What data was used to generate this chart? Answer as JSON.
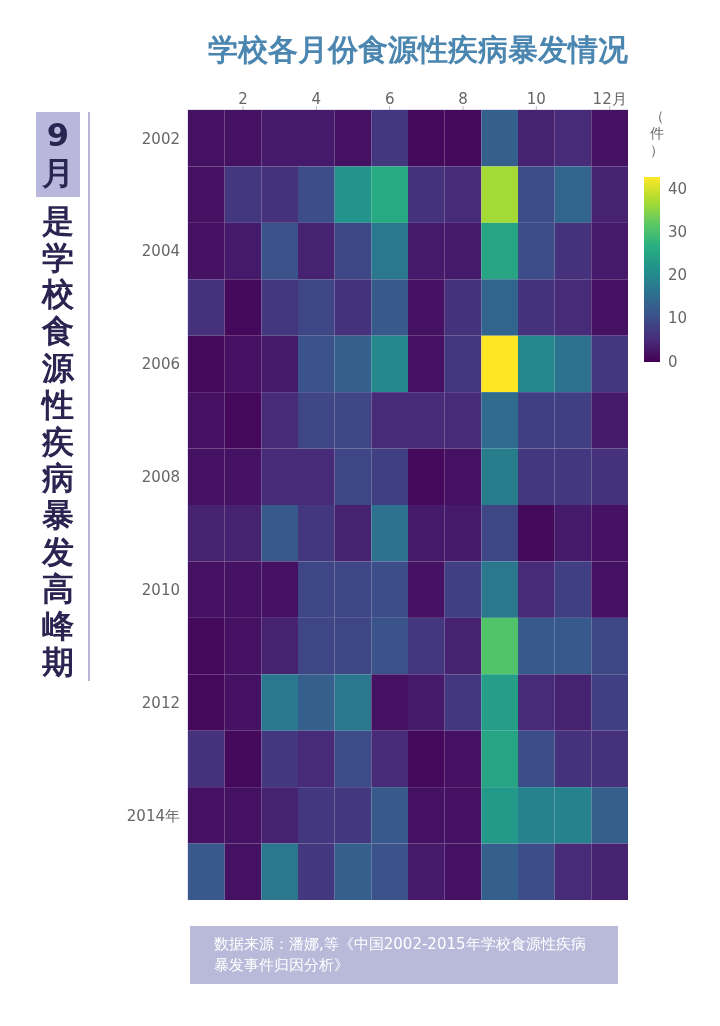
{
  "chart_data": {
    "type": "heatmap",
    "title": "学校各月份食源性疾病暴发情况",
    "annotations": [
      "9月",
      "是学校食源性疾病暴发高峰期",
      "数据来源：潘娜,等《中国2002-2015年学校食源性疾病暴发事件归因分析》"
    ],
    "categories": [
      null,
      "2",
      null,
      "4",
      null,
      "6",
      null,
      "8",
      null,
      "10",
      null,
      "12月"
    ],
    "y_categories": [
      "2002",
      null,
      "2004",
      null,
      "2006",
      null,
      "2008",
      null,
      "2010",
      null,
      "2012",
      null,
      "2014年",
      null
    ],
    "cells": [
      [
        2,
        2,
        3,
        3,
        2,
        7,
        1,
        1,
        13,
        4,
        5,
        2
      ],
      [
        2,
        7,
        6,
        10,
        22,
        26,
        6,
        5,
        37,
        10,
        14,
        4
      ],
      [
        2,
        3,
        11,
        4,
        9,
        17,
        3,
        3,
        25,
        10,
        6,
        3
      ],
      [
        6,
        1,
        7,
        9,
        6,
        12,
        2,
        6,
        14,
        6,
        5,
        2
      ],
      [
        1,
        2,
        3,
        11,
        13,
        20,
        2,
        7,
        43,
        20,
        16,
        7
      ],
      [
        2,
        1,
        5,
        9,
        9,
        5,
        5,
        5,
        15,
        8,
        8,
        3
      ],
      [
        2,
        2,
        5,
        5,
        9,
        8,
        1,
        2,
        18,
        7,
        7,
        6
      ],
      [
        4,
        4,
        12,
        7,
        4,
        16,
        3,
        3,
        9,
        1,
        3,
        2
      ],
      [
        2,
        2,
        2,
        9,
        9,
        10,
        2,
        8,
        17,
        5,
        8,
        2
      ],
      [
        1,
        2,
        4,
        9,
        9,
        11,
        7,
        4,
        31,
        12,
        12,
        9
      ],
      [
        1,
        2,
        17,
        13,
        17,
        2,
        3,
        7,
        24,
        5,
        4,
        8
      ],
      [
        6,
        1,
        7,
        5,
        10,
        5,
        1,
        2,
        25,
        10,
        6,
        6
      ],
      [
        2,
        2,
        4,
        7,
        7,
        12,
        2,
        2,
        23,
        19,
        19,
        13
      ],
      [
        12,
        2,
        17,
        7,
        13,
        11,
        3,
        2,
        13,
        10,
        5,
        4
      ]
    ],
    "clim": [
      0,
      43
    ],
    "cticks": [
      0,
      10,
      20,
      30,
      40
    ],
    "clabel": "（件）"
  }
}
